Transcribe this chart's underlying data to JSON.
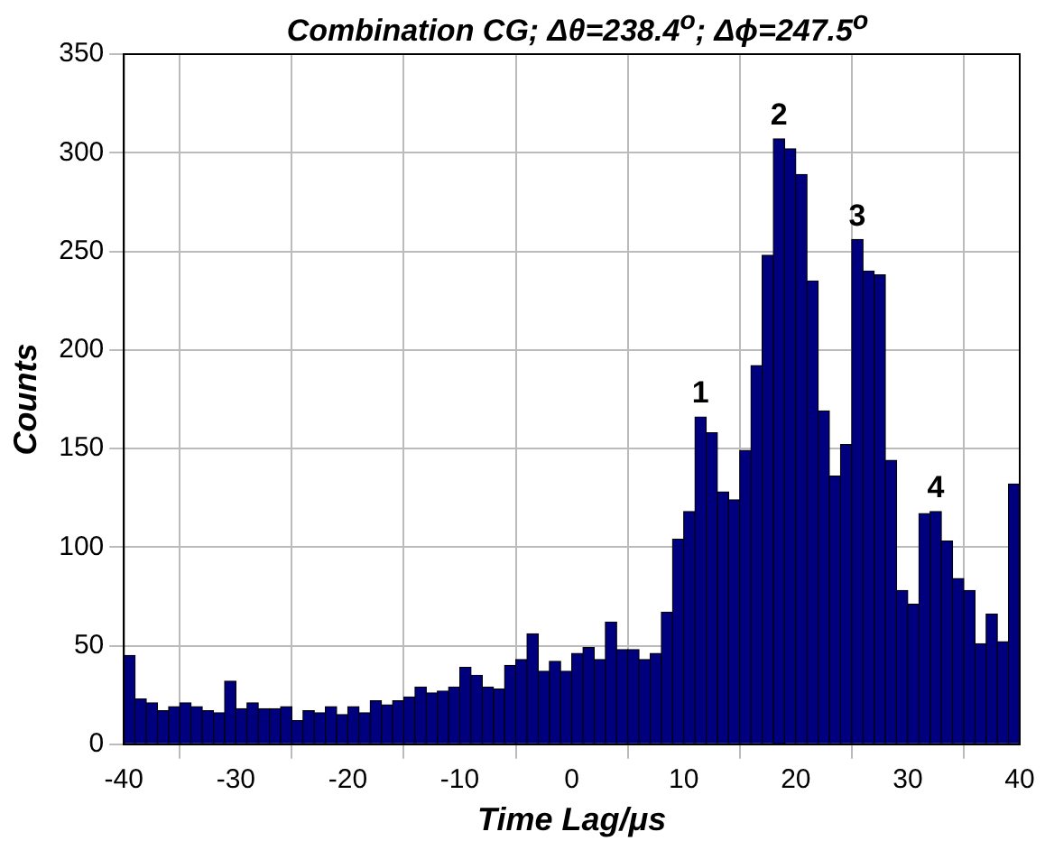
{
  "chart_data": {
    "type": "histogram",
    "title": "Combination CG; Δθ=238.4$^{o}$; Δϕ=247.5$^{o}$",
    "xlabel": "Time Lag/μs",
    "ylabel": "Counts",
    "bins": [
      -40,
      -39,
      -38,
      -37,
      -36,
      -35,
      -34,
      -33,
      -32,
      -31,
      -30,
      -29,
      -28,
      -27,
      -26,
      -25,
      -24,
      -23,
      -22,
      -21,
      -20,
      -19,
      -18,
      -17,
      -16,
      -15,
      -14,
      -13,
      -12,
      -11,
      -10,
      -9,
      -8,
      -7,
      -6,
      -5,
      -4,
      -3,
      -2,
      -1,
      0,
      1,
      2,
      3,
      4,
      5,
      6,
      7,
      8,
      9,
      10,
      11,
      12,
      13,
      14,
      15,
      16,
      17,
      18,
      19,
      20,
      21,
      22,
      23,
      24,
      25,
      26,
      27,
      28,
      29,
      30,
      31,
      32,
      33,
      34,
      35,
      36,
      37,
      38,
      39,
      40
    ],
    "values": [
      45,
      23,
      21,
      17,
      19,
      21,
      19,
      17,
      16,
      32,
      18,
      21,
      18,
      18,
      19,
      12,
      17,
      16,
      19,
      15,
      19,
      16,
      22,
      20,
      22,
      24,
      29,
      26,
      27,
      29,
      39,
      35,
      29,
      28,
      40,
      43,
      56,
      37,
      42,
      37,
      46,
      49,
      43,
      62,
      48,
      48,
      43,
      46,
      67,
      104,
      118,
      166,
      158,
      128,
      124,
      149,
      192,
      248,
      307,
      302,
      289,
      235,
      169,
      136,
      152,
      256,
      240,
      238,
      144,
      78,
      71,
      117,
      118,
      103,
      84,
      78,
      51,
      66,
      52,
      132
    ],
    "color": "#00007f",
    "xlim": [
      -40,
      40
    ],
    "xticks": [
      -40,
      -30,
      -20,
      -10,
      0,
      10,
      20,
      30,
      40
    ],
    "ylim": [
      0,
      350
    ],
    "yticks": [
      0,
      50,
      100,
      150,
      200,
      250,
      300,
      350
    ],
    "grid": true,
    "annotations": [
      {
        "text": "1",
        "x": 11.5,
        "y": 166
      },
      {
        "text": "2",
        "x": 18.5,
        "y": 307
      },
      {
        "text": "3",
        "x": 25.5,
        "y": 256
      },
      {
        "text": "4",
        "x": 32.5,
        "y": 118
      }
    ]
  }
}
